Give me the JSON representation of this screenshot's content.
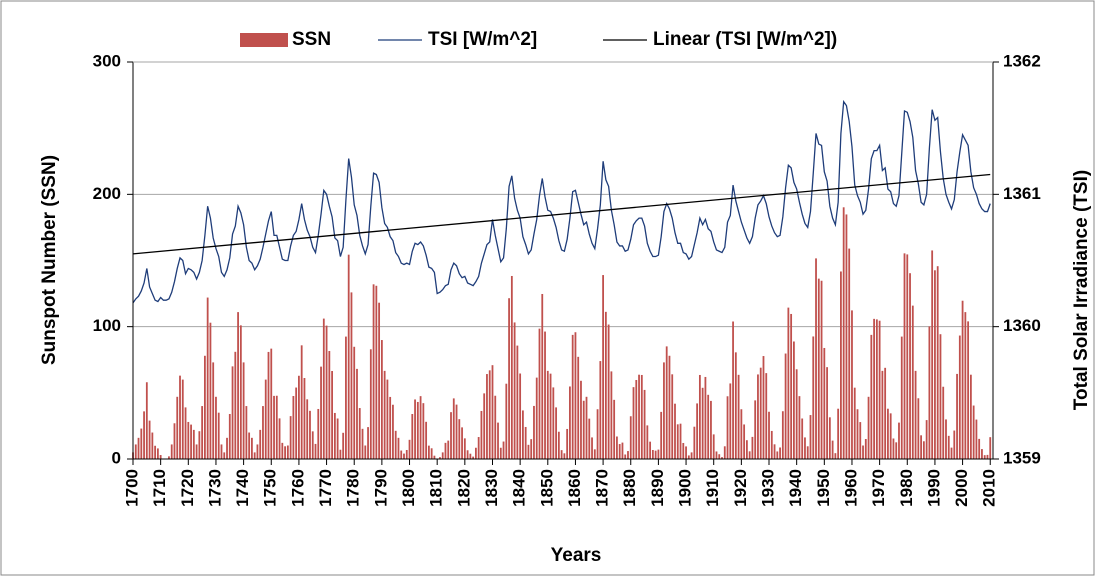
{
  "chart_data": {
    "type": "bar",
    "x_label": "Years",
    "y_label": "Sunspot Number (SSN)",
    "y2_label": "Total Solar Irradiance (TSI)",
    "xlim": [
      1700,
      2011
    ],
    "xticks": [
      1700,
      1710,
      1720,
      1730,
      1740,
      1750,
      1760,
      1770,
      1780,
      1790,
      1800,
      1810,
      1820,
      1830,
      1840,
      1850,
      1860,
      1870,
      1880,
      1890,
      1900,
      1910,
      1920,
      1930,
      1940,
      1950,
      1960,
      1970,
      1980,
      1990,
      2000,
      2010
    ],
    "ylim": [
      0,
      300
    ],
    "yticks": [
      0,
      100,
      200,
      300
    ],
    "y2lim": [
      1359,
      1362
    ],
    "y2ticks": [
      1359,
      1360,
      1361,
      1362
    ],
    "grid": true,
    "legend": "top",
    "x": [
      1700,
      1701,
      1702,
      1703,
      1704,
      1705,
      1706,
      1707,
      1708,
      1709,
      1710,
      1711,
      1712,
      1713,
      1714,
      1715,
      1716,
      1717,
      1718,
      1719,
      1720,
      1721,
      1722,
      1723,
      1724,
      1725,
      1726,
      1727,
      1728,
      1729,
      1730,
      1731,
      1732,
      1733,
      1734,
      1735,
      1736,
      1737,
      1738,
      1739,
      1740,
      1741,
      1742,
      1743,
      1744,
      1745,
      1746,
      1747,
      1748,
      1749,
      1750,
      1751,
      1752,
      1753,
      1754,
      1755,
      1756,
      1757,
      1758,
      1759,
      1760,
      1761,
      1762,
      1763,
      1764,
      1765,
      1766,
      1767,
      1768,
      1769,
      1770,
      1771,
      1772,
      1773,
      1774,
      1775,
      1776,
      1777,
      1778,
      1779,
      1780,
      1781,
      1782,
      1783,
      1784,
      1785,
      1786,
      1787,
      1788,
      1789,
      1790,
      1791,
      1792,
      1793,
      1794,
      1795,
      1796,
      1797,
      1798,
      1799,
      1800,
      1801,
      1802,
      1803,
      1804,
      1805,
      1806,
      1807,
      1808,
      1809,
      1810,
      1811,
      1812,
      1813,
      1814,
      1815,
      1816,
      1817,
      1818,
      1819,
      1820,
      1821,
      1822,
      1823,
      1824,
      1825,
      1826,
      1827,
      1828,
      1829,
      1830,
      1831,
      1832,
      1833,
      1834,
      1835,
      1836,
      1837,
      1838,
      1839,
      1840,
      1841,
      1842,
      1843,
      1844,
      1845,
      1846,
      1847,
      1848,
      1849,
      1850,
      1851,
      1852,
      1853,
      1854,
      1855,
      1856,
      1857,
      1858,
      1859,
      1860,
      1861,
      1862,
      1863,
      1864,
      1865,
      1866,
      1867,
      1868,
      1869,
      1870,
      1871,
      1872,
      1873,
      1874,
      1875,
      1876,
      1877,
      1878,
      1879,
      1880,
      1881,
      1882,
      1883,
      1884,
      1885,
      1886,
      1887,
      1888,
      1889,
      1890,
      1891,
      1892,
      1893,
      1894,
      1895,
      1896,
      1897,
      1898,
      1899,
      1900,
      1901,
      1902,
      1903,
      1904,
      1905,
      1906,
      1907,
      1908,
      1909,
      1910,
      1911,
      1912,
      1913,
      1914,
      1915,
      1916,
      1917,
      1918,
      1919,
      1920,
      1921,
      1922,
      1923,
      1924,
      1925,
      1926,
      1927,
      1928,
      1929,
      1930,
      1931,
      1932,
      1933,
      1934,
      1935,
      1936,
      1937,
      1938,
      1939,
      1940,
      1941,
      1942,
      1943,
      1944,
      1945,
      1946,
      1947,
      1948,
      1949,
      1950,
      1951,
      1952,
      1953,
      1954,
      1955,
      1956,
      1957,
      1958,
      1959,
      1960,
      1961,
      1962,
      1963,
      1964,
      1965,
      1966,
      1967,
      1968,
      1969,
      1970,
      1971,
      1972,
      1973,
      1974,
      1975,
      1976,
      1977,
      1978,
      1979,
      1980,
      1981,
      1982,
      1983,
      1984,
      1985,
      1986,
      1987,
      1988,
      1989,
      1990,
      1991,
      1992,
      1993,
      1994,
      1995,
      1996,
      1997,
      1998,
      1999,
      2000,
      2001,
      2002,
      2003,
      2004,
      2005,
      2006,
      2007,
      2008,
      2009,
      2010
    ],
    "series": [
      {
        "name": "SSN",
        "color": "#c0504d",
        "values": [
          5,
          11,
          16,
          23,
          36,
          58,
          29,
          20,
          10,
          8,
          3,
          0,
          0,
          2,
          11,
          27,
          47,
          63,
          60,
          39,
          28,
          26,
          22,
          11,
          21,
          40,
          78,
          122,
          103,
          73,
          47,
          35,
          11,
          5,
          16,
          34,
          70,
          81,
          111,
          101,
          73,
          40,
          20,
          16,
          5,
          11,
          22,
          40,
          60,
          80.9,
          83.4,
          47.7,
          47.8,
          30.7,
          12.2,
          9.6,
          10.2,
          32.4,
          47.6,
          54,
          62.9,
          85.9,
          61.2,
          45.1,
          36.4,
          20.9,
          11.4,
          37.8,
          69.8,
          106.1,
          100.8,
          81.6,
          66.5,
          34.8,
          30.6,
          7,
          19.8,
          92.5,
          154.4,
          125.9,
          84.8,
          68.1,
          38.5,
          22.8,
          10.2,
          24.1,
          82.9,
          132,
          130.9,
          118.1,
          89.9,
          66.6,
          60,
          46.9,
          41,
          21.3,
          16,
          6.4,
          4.1,
          6.8,
          14.5,
          34,
          45,
          43.1,
          47.5,
          42.2,
          28.1,
          10.1,
          8.1,
          2.5,
          0,
          1.4,
          5,
          12.2,
          13.9,
          35.4,
          45.8,
          41.1,
          30.1,
          23.9,
          15.6,
          6.6,
          4,
          1.8,
          8.5,
          16.6,
          36.3,
          49.6,
          64.2,
          67,
          70.9,
          47.8,
          27.5,
          8.5,
          13.2,
          56.9,
          121.5,
          138.3,
          103.2,
          85.7,
          64.6,
          36.7,
          24.2,
          10.7,
          15,
          40.1,
          61.5,
          98.5,
          124.7,
          96.3,
          66.6,
          64.5,
          54.1,
          39,
          20.6,
          6.7,
          4.3,
          22.7,
          54.8,
          93.8,
          95.8,
          77.2,
          59.1,
          44,
          47,
          30.5,
          16.3,
          7.3,
          37.6,
          74,
          139,
          111.2,
          101.6,
          66.2,
          44.7,
          17,
          11.3,
          12.4,
          3.4,
          6,
          32.3,
          54.3,
          59.7,
          63.7,
          63.5,
          52.2,
          25.4,
          13.1,
          6.8,
          6.3,
          7.1,
          35.6,
          73,
          85.1,
          78,
          64,
          41.8,
          26.2,
          26.7,
          12.1,
          9.5,
          2.7,
          5,
          24.4,
          42,
          63.5,
          53.8,
          62,
          48.5,
          43.9,
          18.6,
          5.7,
          3.6,
          1.4,
          9.6,
          47.4,
          57.1,
          103.9,
          80.6,
          63.6,
          37.6,
          26.1,
          14.2,
          5.8,
          16.7,
          44.3,
          63.9,
          69,
          77.8,
          64.9,
          35.7,
          21.2,
          11.1,
          5.7,
          8.7,
          36.1,
          79.7,
          114.4,
          109.6,
          88.8,
          67.8,
          47.5,
          30.6,
          16.3,
          9.6,
          33.2,
          92.6,
          151.6,
          136.3,
          134.7,
          83.9,
          69.4,
          31.5,
          13.9,
          4.4,
          38,
          141.7,
          190.2,
          184.8,
          159,
          112.3,
          53.9,
          37.6,
          27.9,
          10.2,
          15.1,
          47,
          93.8,
          105.9,
          105.5,
          104.5,
          66.6,
          68.9,
          38,
          34.5,
          15.5,
          12.6,
          27.5,
          92.5,
          155.4,
          154.6,
          140.4,
          115.9,
          66.6,
          45.9,
          17.9,
          13.4,
          29.4,
          100.2,
          157.6,
          142.6,
          145.7,
          94.3,
          54.6,
          29.9,
          17.5,
          8.6,
          21.5,
          64.3,
          93.3,
          119.6,
          111,
          104,
          63.7,
          40.4,
          29.8,
          15.2,
          7.5,
          2.9,
          3.1,
          16.5
        ]
      },
      {
        "name": "TSI [W/m^2]",
        "type": "line",
        "axis": "y2",
        "color": "#1f3d7a",
        "values": [
          1360.18,
          1360.21,
          1360.23,
          1360.27,
          1360.33,
          1360.44,
          1360.3,
          1360.25,
          1360.2,
          1360.19,
          1360.22,
          1360.2,
          1360.2,
          1360.21,
          1360.26,
          1360.34,
          1360.44,
          1360.52,
          1360.5,
          1360.4,
          1360.44,
          1360.43,
          1360.41,
          1360.36,
          1360.41,
          1360.5,
          1360.69,
          1360.91,
          1360.82,
          1360.67,
          1360.59,
          1360.53,
          1360.41,
          1360.38,
          1360.43,
          1360.52,
          1360.7,
          1360.76,
          1360.91,
          1360.86,
          1360.77,
          1360.6,
          1360.5,
          1360.48,
          1360.43,
          1360.46,
          1360.51,
          1360.6,
          1360.7,
          1360.8,
          1360.87,
          1360.69,
          1360.69,
          1360.6,
          1360.51,
          1360.5,
          1360.5,
          1360.61,
          1360.69,
          1360.72,
          1360.81,
          1360.93,
          1360.81,
          1360.73,
          1360.68,
          1360.6,
          1360.56,
          1360.69,
          1360.85,
          1361.03,
          1361.0,
          1360.91,
          1360.83,
          1360.67,
          1360.65,
          1360.53,
          1360.6,
          1360.96,
          1361.27,
          1361.13,
          1360.92,
          1360.84,
          1360.69,
          1360.61,
          1360.55,
          1360.62,
          1360.91,
          1361.16,
          1361.15,
          1361.09,
          1360.9,
          1360.78,
          1360.75,
          1360.68,
          1360.65,
          1360.56,
          1360.53,
          1360.48,
          1360.47,
          1360.48,
          1360.47,
          1360.57,
          1360.63,
          1360.62,
          1360.64,
          1360.61,
          1360.54,
          1360.45,
          1360.44,
          1360.41,
          1360.25,
          1360.26,
          1360.28,
          1360.31,
          1360.32,
          1360.43,
          1360.48,
          1360.46,
          1360.4,
          1360.37,
          1360.38,
          1360.33,
          1360.32,
          1360.31,
          1360.34,
          1360.38,
          1360.48,
          1360.55,
          1360.62,
          1360.64,
          1360.81,
          1360.69,
          1360.59,
          1360.49,
          1360.52,
          1360.74,
          1361.06,
          1361.14,
          1360.97,
          1360.88,
          1360.82,
          1360.68,
          1360.62,
          1360.55,
          1360.58,
          1360.7,
          1360.81,
          1360.99,
          1361.12,
          1360.98,
          1360.88,
          1360.87,
          1360.82,
          1360.75,
          1360.65,
          1360.58,
          1360.57,
          1360.66,
          1360.82,
          1361.02,
          1361.03,
          1360.94,
          1360.85,
          1360.77,
          1360.79,
          1360.7,
          1360.63,
          1360.59,
          1360.74,
          1360.92,
          1361.25,
          1361.11,
          1361.06,
          1360.88,
          1360.77,
          1360.64,
          1360.61,
          1360.61,
          1360.57,
          1360.58,
          1360.66,
          1360.77,
          1360.8,
          1360.82,
          1360.82,
          1360.76,
          1360.63,
          1360.57,
          1360.53,
          1360.53,
          1360.54,
          1360.68,
          1360.87,
          1360.93,
          1360.89,
          1360.82,
          1360.71,
          1360.63,
          1360.63,
          1360.56,
          1360.55,
          1360.51,
          1360.53,
          1360.62,
          1360.71,
          1360.82,
          1360.77,
          1360.81,
          1360.74,
          1360.72,
          1360.64,
          1360.58,
          1360.57,
          1360.56,
          1360.6,
          1360.79,
          1360.84,
          1361.07,
          1360.95,
          1360.87,
          1360.79,
          1360.73,
          1360.67,
          1360.63,
          1360.68,
          1360.82,
          1360.92,
          1360.95,
          1360.99,
          1360.93,
          1360.83,
          1360.76,
          1360.71,
          1360.68,
          1360.69,
          1360.83,
          1361.05,
          1361.22,
          1361.2,
          1361.09,
          1361.04,
          1360.94,
          1360.85,
          1360.78,
          1360.75,
          1360.87,
          1361.16,
          1361.46,
          1361.38,
          1361.37,
          1361.17,
          1361.1,
          1360.91,
          1360.82,
          1360.77,
          1360.94,
          1361.46,
          1361.7,
          1361.67,
          1361.55,
          1361.36,
          1361.07,
          1360.99,
          1360.94,
          1360.85,
          1360.88,
          1361.04,
          1361.27,
          1361.33,
          1361.33,
          1361.37,
          1361.18,
          1361.2,
          1361.04,
          1361.02,
          1360.93,
          1360.91,
          1360.99,
          1361.31,
          1361.63,
          1361.62,
          1361.55,
          1361.43,
          1361.18,
          1361.08,
          1360.94,
          1360.92,
          1361.0,
          1361.35,
          1361.64,
          1361.56,
          1361.58,
          1361.32,
          1361.12,
          1361.0,
          1360.94,
          1360.89,
          1360.96,
          1361.17,
          1361.32,
          1361.45,
          1361.41,
          1361.37,
          1361.17,
          1361.05,
          1361.0,
          1360.93,
          1360.89,
          1360.87,
          1360.87,
          1360.93
        ]
      },
      {
        "name": "Linear (TSI [W/m^2])",
        "type": "line",
        "axis": "y2",
        "color": "#000000",
        "x": [
          1700,
          2010
        ],
        "values": [
          1360.55,
          1361.15
        ]
      }
    ]
  }
}
